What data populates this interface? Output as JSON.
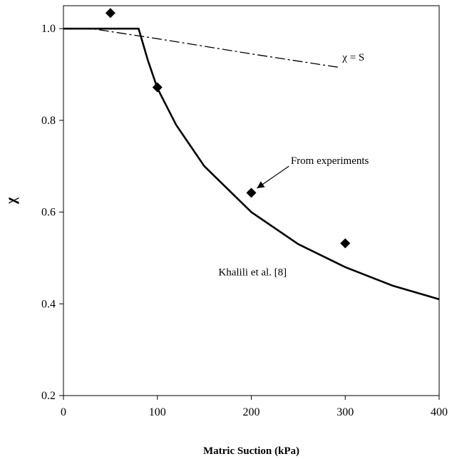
{
  "chart_data": {
    "type": "scatter",
    "title": "",
    "xlabel": "Matric Suction (kPa)",
    "ylabel": "χ",
    "xlim": [
      0,
      400
    ],
    "ylim": [
      0.2,
      1.05
    ],
    "xticks": [
      0,
      100,
      200,
      300,
      400
    ],
    "yticks": [
      0.2,
      0.4,
      0.6,
      0.8,
      1.0
    ],
    "xtick_labels": [
      "0",
      "100",
      "200",
      "300",
      "400"
    ],
    "ytick_labels": [
      "0.2",
      "0.4",
      "0.6",
      "0.8",
      "1.0"
    ],
    "grid": false,
    "series": [
      {
        "kind": "line-solid",
        "color": "#000000",
        "x": [
          0,
          80,
          90,
          100,
          120,
          150,
          200,
          250,
          300,
          350,
          400
        ],
        "y": [
          1.0,
          1.0,
          0.93,
          0.87,
          0.79,
          0.7,
          0.6,
          0.53,
          0.48,
          0.44,
          0.41
        ]
      },
      {
        "kind": "line-dashdot",
        "color": "#000000",
        "x": [
          0,
          30,
          100,
          200,
          295
        ],
        "y": [
          1.0,
          1.0,
          0.978,
          0.945,
          0.915
        ]
      },
      {
        "kind": "markers-diamond",
        "color": "#000000",
        "x": [
          50,
          100,
          200,
          300
        ],
        "y": [
          1.034,
          0.872,
          0.642,
          0.532
        ]
      }
    ],
    "annotations": [
      {
        "id": "chi-eq-s",
        "text": "χ = S",
        "x": 297,
        "y": 0.93
      },
      {
        "id": "from-experiments",
        "text": "From experiments",
        "x": 242,
        "y": 0.705
      },
      {
        "id": "khalili",
        "text": "Khalili et al. [8]",
        "x": 165,
        "y": 0.462
      }
    ],
    "arrow": {
      "from_x": 240,
      "from_y": 0.7,
      "to_x": 206,
      "to_y": 0.652
    }
  }
}
